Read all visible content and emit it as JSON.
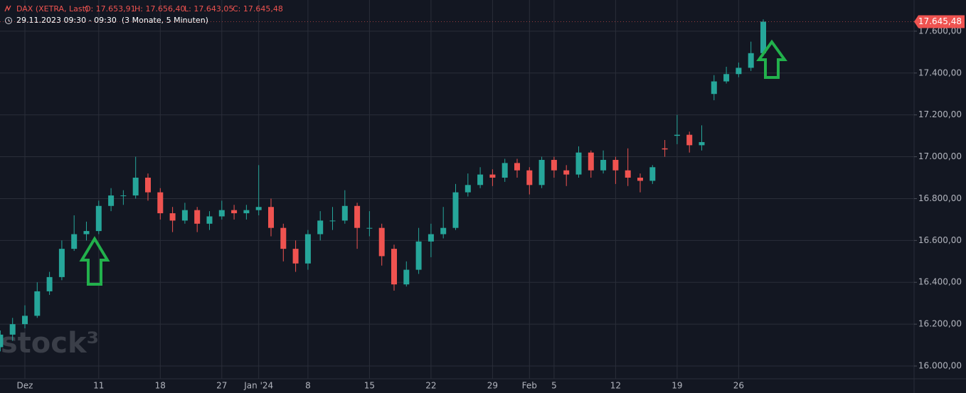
{
  "chart_data": {
    "type": "candlestick",
    "title": "DAX (XETRA, Last)",
    "ohlc_labels": [
      "O: 17.653,91",
      "H: 17.656,40",
      "L: 17.643,05",
      "C: 17.645,48"
    ],
    "subtitle": "29.11.2023 09:30 - 09:30  (3 Monate, 5 Minuten)",
    "watermark": "stock³",
    "categories": [
      null,
      null,
      "Dez",
      null,
      null,
      null,
      null,
      null,
      "11",
      null,
      null,
      null,
      null,
      "18",
      null,
      null,
      null,
      null,
      "27",
      null,
      null,
      "Jan '24",
      null,
      null,
      null,
      "8",
      null,
      null,
      null,
      null,
      "15",
      null,
      null,
      null,
      null,
      "22",
      null,
      null,
      null,
      null,
      "29",
      null,
      null,
      "Feb",
      null,
      "5",
      null,
      null,
      null,
      null,
      "12",
      null,
      null,
      null,
      null,
      "19",
      null,
      null,
      null,
      null,
      "26",
      null,
      null
    ],
    "open": [
      16090,
      16150,
      16200,
      16240,
      16357,
      16425,
      16560,
      16630,
      16645,
      16765,
      16815,
      16815,
      16900,
      16830,
      16730,
      16695,
      16745,
      16680,
      16715,
      16745,
      16730,
      16745,
      16760,
      16660,
      16560,
      16490,
      16630,
      16695,
      16695,
      16765,
      16660,
      16660,
      16560,
      16390,
      16460,
      16595,
      16630,
      16660,
      16830,
      16865,
      16915,
      16900,
      16970,
      16935,
      16865,
      16985,
      16935,
      16915,
      17020,
      16935,
      16985,
      16935,
      16900,
      16885,
      17040,
      17100,
      17105,
      17055,
      17300,
      17360,
      17395,
      17425,
      17495
    ],
    "high": [
      16170,
      16230,
      16290,
      16400,
      16450,
      16600,
      16720,
      16690,
      16790,
      16850,
      16840,
      17000,
      16920,
      16850,
      16760,
      16780,
      16760,
      16740,
      16790,
      16770,
      16770,
      16960,
      16800,
      16680,
      16600,
      16650,
      16740,
      16760,
      16840,
      16780,
      16740,
      16680,
      16580,
      16500,
      16660,
      16680,
      16760,
      16870,
      16920,
      16950,
      16940,
      16990,
      16990,
      16950,
      17000,
      17000,
      16960,
      17050,
      17030,
      17030,
      17000,
      17040,
      16920,
      16960,
      17080,
      17200,
      17120,
      17150,
      17390,
      17430,
      17450,
      17550,
      17656.4
    ],
    "low": [
      16070,
      16120,
      16180,
      16230,
      16340,
      16410,
      16550,
      16600,
      16630,
      16740,
      16770,
      16800,
      16790,
      16700,
      16640,
      16680,
      16640,
      16650,
      16700,
      16700,
      16700,
      16720,
      16620,
      16500,
      16450,
      16460,
      16600,
      16650,
      16680,
      16560,
      16620,
      16480,
      16360,
      16380,
      16440,
      16520,
      16610,
      16650,
      16810,
      16850,
      16860,
      16880,
      16900,
      16820,
      16850,
      16900,
      16860,
      16900,
      16900,
      16920,
      16870,
      16860,
      16830,
      16870,
      17000,
      17060,
      17020,
      17030,
      17270,
      17350,
      17380,
      17410,
      17480
    ],
    "close": [
      16150,
      16200,
      16240,
      16357,
      16425,
      16560,
      16630,
      16645,
      16765,
      16815,
      16815,
      16900,
      16830,
      16730,
      16695,
      16745,
      16680,
      16715,
      16745,
      16730,
      16745,
      16760,
      16660,
      16560,
      16490,
      16630,
      16695,
      16695,
      16765,
      16660,
      16660,
      16525,
      16390,
      16460,
      16595,
      16630,
      16660,
      16830,
      16865,
      16915,
      16900,
      16970,
      16935,
      16865,
      16985,
      16935,
      16915,
      17020,
      16935,
      16985,
      16935,
      16900,
      16885,
      16950,
      17035,
      17105,
      17055,
      17070,
      17360,
      17395,
      17425,
      17495,
      17645.48
    ],
    "up_color": "#26a69a",
    "down_color": "#ef5350",
    "last_price": {
      "value": 17645.48,
      "label": "17.645,48"
    },
    "ylim": [
      15939,
      17749
    ],
    "yticks": [
      {
        "value": 16000,
        "label": "16.000,00"
      },
      {
        "value": 16200,
        "label": "16.200,00"
      },
      {
        "value": 16400,
        "label": "16.400,00"
      },
      {
        "value": 16600,
        "label": "16.600,00"
      },
      {
        "value": 16800,
        "label": "16.800,00"
      },
      {
        "value": 17000,
        "label": "17.000,00"
      },
      {
        "value": 17200,
        "label": "17.200,00"
      },
      {
        "value": 17400,
        "label": "17.400,00"
      },
      {
        "value": 17600,
        "label": "17.600,00"
      }
    ],
    "grid": true
  }
}
